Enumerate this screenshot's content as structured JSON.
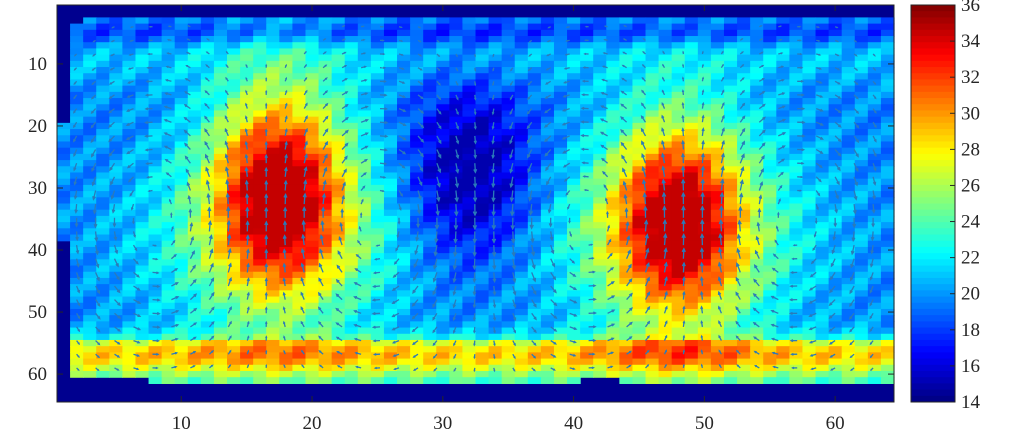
{
  "chart_data": {
    "type": "heatmap",
    "overlay": "quiver",
    "title": "",
    "xlabel": "",
    "ylabel": "",
    "x_range": [
      0.5,
      64.5
    ],
    "y_range": [
      0.5,
      64.5
    ],
    "y_direction": "down",
    "x_ticks": [
      10,
      20,
      30,
      40,
      50,
      60
    ],
    "y_ticks": [
      10,
      20,
      30,
      40,
      50,
      60
    ],
    "colorbar": {
      "range": [
        14,
        36
      ],
      "ticks": [
        14,
        16,
        18,
        20,
        22,
        24,
        26,
        28,
        30,
        32,
        34,
        36
      ],
      "colormap": "jet"
    },
    "background_color": "#00008f",
    "arrow_color": "#2b7bb9",
    "data_region": {
      "cols": [
        1,
        64
      ],
      "rows": [
        3,
        61
      ]
    },
    "hotspots": [
      {
        "center_x": 17.5,
        "center_y": 30,
        "peak": 34
      },
      {
        "center_x": 48,
        "center_y": 35,
        "peak": 33
      }
    ],
    "cold_regions": [
      {
        "center_x": 32,
        "center_y": 28,
        "value": 16
      }
    ],
    "bottom_band": {
      "rows": [
        52,
        60
      ],
      "value": 32
    },
    "vortices": [
      {
        "center_x": 8,
        "center_y": 35,
        "rotation": "counterclockwise"
      },
      {
        "center_x": 25,
        "center_y": 35,
        "rotation": "clockwise"
      },
      {
        "center_x": 41,
        "center_y": 35,
        "rotation": "counterclockwise"
      },
      {
        "center_x": 57,
        "center_y": 35,
        "rotation": "clockwise"
      }
    ]
  }
}
